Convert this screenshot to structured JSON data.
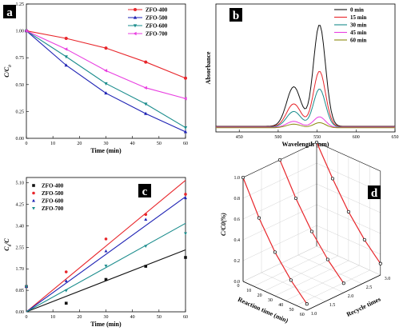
{
  "chart_data": [
    {
      "panel": "a",
      "type": "line",
      "xlabel": "Time (min)",
      "ylabel": "C/C0",
      "xlim": [
        0,
        60
      ],
      "ylim": [
        0,
        1.25
      ],
      "xticks": [
        0,
        10,
        20,
        30,
        40,
        50,
        60
      ],
      "yticks": [
        0.0,
        0.25,
        0.5,
        0.75,
        1.0,
        1.25
      ],
      "legend_position": "top-right",
      "x": [
        0,
        15,
        30,
        45,
        60
      ],
      "series": [
        {
          "name": "ZFO-400",
          "color": "#e8262b",
          "marker": "circle",
          "values": [
            1.0,
            0.93,
            0.84,
            0.71,
            0.56
          ]
        },
        {
          "name": "ZFO-500",
          "color": "#1e22b4",
          "marker": "triangle-up",
          "values": [
            1.0,
            0.68,
            0.42,
            0.23,
            0.06
          ]
        },
        {
          "name": "ZFO-600",
          "color": "#1a8c8c",
          "marker": "triangle-down",
          "values": [
            1.0,
            0.76,
            0.51,
            0.32,
            0.1
          ]
        },
        {
          "name": "ZFO-700",
          "color": "#e83ee0",
          "marker": "triangle-left",
          "values": [
            1.0,
            0.83,
            0.63,
            0.47,
            0.37
          ]
        }
      ]
    },
    {
      "panel": "b",
      "type": "line",
      "xlabel": "Wavelength (nm)",
      "ylabel": "Absorbance",
      "xlim": [
        420,
        650
      ],
      "xticks": [
        450,
        500,
        550,
        600,
        650
      ],
      "legend_position": "top-right",
      "series": [
        {
          "name": "0 min",
          "color": "#111111",
          "peak": 0.93,
          "shoulder": 0.33
        },
        {
          "name": "15 min",
          "color": "#e8262b",
          "peak": 0.51,
          "shoulder": 0.19
        },
        {
          "name": "30 min",
          "color": "#1a8c8c",
          "peak": 0.35,
          "shoulder": 0.13
        },
        {
          "name": "45 min",
          "color": "#e83ee0",
          "peak": 0.1,
          "shoulder": 0.05
        },
        {
          "name": "60 min",
          "color": "#8c8a10",
          "peak": 0.05,
          "shoulder": 0.03
        }
      ],
      "peak_wavelength": 553,
      "shoulder_wavelength": 520
    },
    {
      "panel": "c",
      "type": "scatter",
      "xlabel": "Time (min)",
      "ylabel": "C0/C",
      "xlim": [
        0,
        60
      ],
      "ylim": [
        0,
        5.1
      ],
      "xticks": [
        0,
        10,
        20,
        30,
        40,
        50,
        60
      ],
      "ytick_labels": [
        "0.00",
        "0.85",
        "1.70",
        "2.55",
        "3.40",
        "4.25",
        "5.10"
      ],
      "legend_position": "top-left",
      "x": [
        0,
        15,
        30,
        45,
        60
      ],
      "series": [
        {
          "name": "ZFO-400",
          "color": "#111111",
          "marker": "square",
          "values": [
            1.0,
            0.34,
            1.28,
            1.8,
            2.15
          ],
          "fit_end": 2.45
        },
        {
          "name": "ZFO-500",
          "color": "#e8262b",
          "marker": "circle",
          "values": [
            1.0,
            1.58,
            2.88,
            3.85,
            4.65
          ],
          "fit_end": 5.2
        },
        {
          "name": "ZFO-600",
          "color": "#1e22b4",
          "marker": "triangle-up",
          "values": [
            1.0,
            1.22,
            2.4,
            3.65,
            4.5
          ],
          "fit_end": 4.55
        },
        {
          "name": "ZFO-700",
          "color": "#1a8c8c",
          "marker": "triangle-down",
          "values": [
            1.0,
            0.84,
            1.82,
            2.6,
            3.1
          ],
          "fit_end": 3.5
        }
      ]
    },
    {
      "panel": "d",
      "type": "line",
      "projection": "3d",
      "xlabel": "Reaction time (min)",
      "ylabel": "Recycle times",
      "zlabel": "C/C0(%)",
      "xticks": [
        0,
        10,
        20,
        30,
        40,
        50,
        60
      ],
      "yticks": [
        "1.0",
        "1.5",
        "2.0",
        "2.5",
        "3.0"
      ],
      "zticks": [
        "0.0",
        "0.2",
        "0.4",
        "0.6",
        "0.8",
        "1.0"
      ],
      "x": [
        0,
        15,
        30,
        45,
        60
      ],
      "series": [
        {
          "name": "",
          "cycle": 1,
          "color": "#e8262b",
          "values": [
            1.0,
            0.68,
            0.42,
            0.22,
            0.06
          ]
        },
        {
          "name": "",
          "cycle": 2,
          "color": "#e8262b",
          "values": [
            1.0,
            0.7,
            0.45,
            0.25,
            0.09
          ]
        },
        {
          "name": "",
          "cycle": 3,
          "color": "#e8262b",
          "values": [
            1.0,
            0.72,
            0.47,
            0.27,
            0.11
          ]
        }
      ]
    }
  ],
  "panel_labels": [
    "a",
    "b",
    "c",
    "d"
  ]
}
